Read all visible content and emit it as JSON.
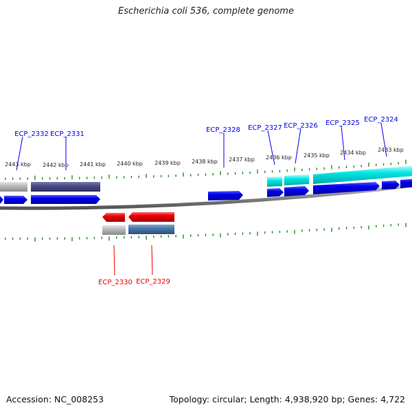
{
  "header": {
    "title": "Escherichia coli 536, complete genome"
  },
  "footer": {
    "accession": "Accession: NC_008253",
    "summary": "Topology: circular; Length: 4,938,920 bp; Genes: 4,722"
  },
  "map": {
    "kbp_labels": [
      "2443 kbp",
      "2442 kbp",
      "2441 kbp",
      "2440 kbp",
      "2439 kbp",
      "2438 kbp",
      "2437 kbp",
      "2436 kbp",
      "2435 kbp",
      "2434 kbp",
      "2433 kbp"
    ],
    "genes_top": [
      "ECP_2332",
      "ECP_2331",
      "ECP_2328",
      "ECP_2327",
      "ECP_2326",
      "ECP_2325",
      "ECP_2324"
    ],
    "genes_bottom": [
      "ECP_2330",
      "ECP_2329"
    ],
    "colors": {
      "forward_gene": "#0000ee",
      "reverse_gene": "#ee0000",
      "cds_forward": "#00e5e5",
      "cds_slate": "#4a4a88",
      "cds_gray": "#bbbbbb",
      "cds_steel": "#4a77a8",
      "backbone": "#888888",
      "tick": "#2a8a2a"
    }
  }
}
